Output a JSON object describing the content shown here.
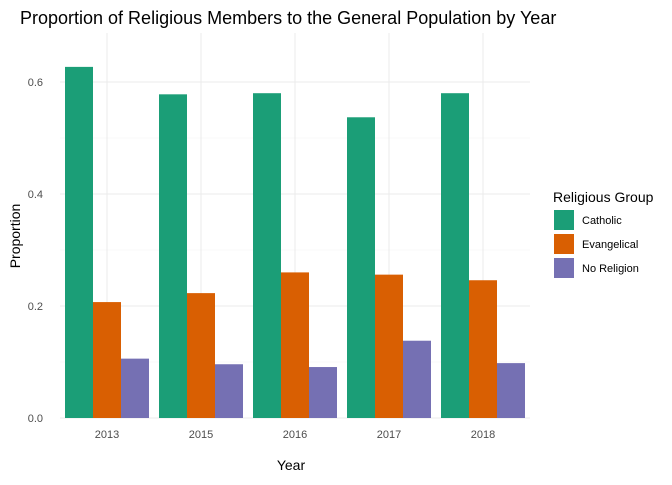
{
  "chart_data": {
    "type": "bar",
    "title": "Proportion of Religious Members to the General Population by Year",
    "xlabel": "Year",
    "ylabel": "Proportion",
    "categories": [
      "2013",
      "2015",
      "2016",
      "2017",
      "2018"
    ],
    "series": [
      {
        "name": "Catholic",
        "color": "#1B9E77",
        "values": [
          0.627,
          0.578,
          0.58,
          0.537,
          0.58
        ]
      },
      {
        "name": "Evangelical",
        "color": "#D95F02",
        "values": [
          0.207,
          0.223,
          0.26,
          0.256,
          0.246
        ]
      },
      {
        "name": "No Religion",
        "color": "#7570B3",
        "values": [
          0.106,
          0.096,
          0.091,
          0.138,
          0.098
        ]
      }
    ],
    "ylim": [
      0,
      0.65
    ],
    "yticks": [
      0.0,
      0.2,
      0.4,
      0.6
    ],
    "ytick_labels": [
      "0.0",
      "0.2",
      "0.4",
      "0.6"
    ],
    "grid": true,
    "legend": {
      "title": "Religious Group",
      "position": "right"
    }
  }
}
